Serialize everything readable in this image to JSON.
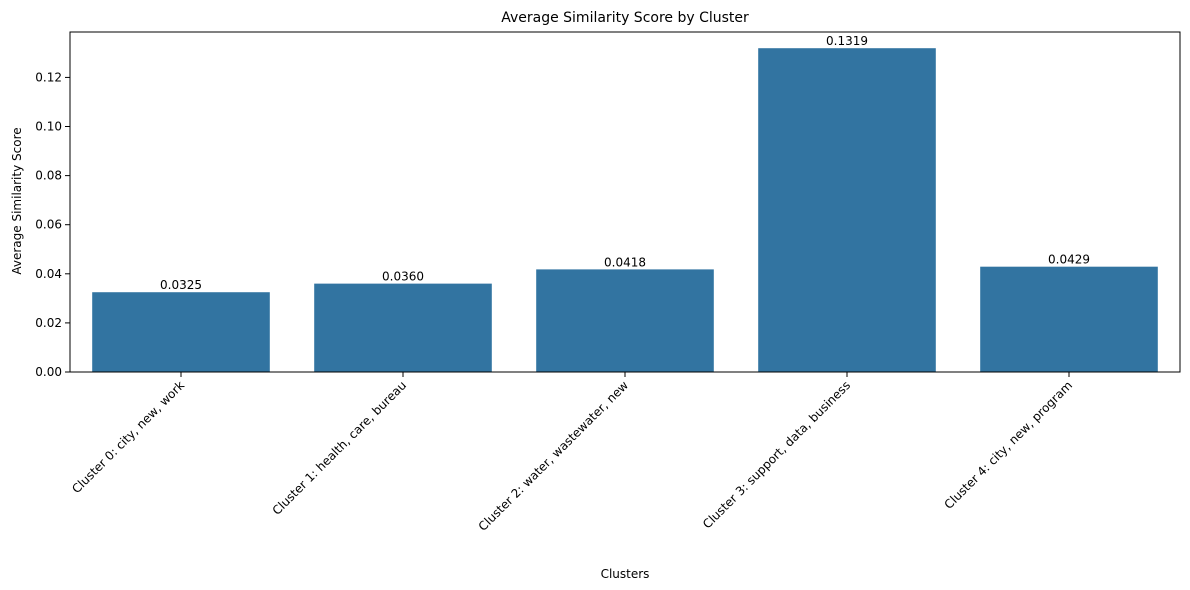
{
  "chart_data": {
    "type": "bar",
    "title": "Average Similarity Score by Cluster",
    "xlabel": "Clusters",
    "ylabel": "Average Similarity Score",
    "categories": [
      "Cluster 0: city, new, work",
      "Cluster 1: health, care, bureau",
      "Cluster 2: water, wastewater, new",
      "Cluster 3: support, data, business",
      "Cluster 4: city, new, program"
    ],
    "values": [
      0.0325,
      0.036,
      0.0418,
      0.1319,
      0.0429
    ],
    "data_labels": [
      "0.0325",
      "0.0360",
      "0.0418",
      "0.1319",
      "0.0429"
    ],
    "ylim": [
      0,
      0.1385
    ],
    "yticks": [
      0.0,
      0.02,
      0.04,
      0.06,
      0.08,
      0.1,
      0.12
    ],
    "ytick_labels": [
      "0.00",
      "0.02",
      "0.04",
      "0.06",
      "0.08",
      "0.10",
      "0.12"
    ],
    "grid": false,
    "bar_color": "#3274a1"
  }
}
